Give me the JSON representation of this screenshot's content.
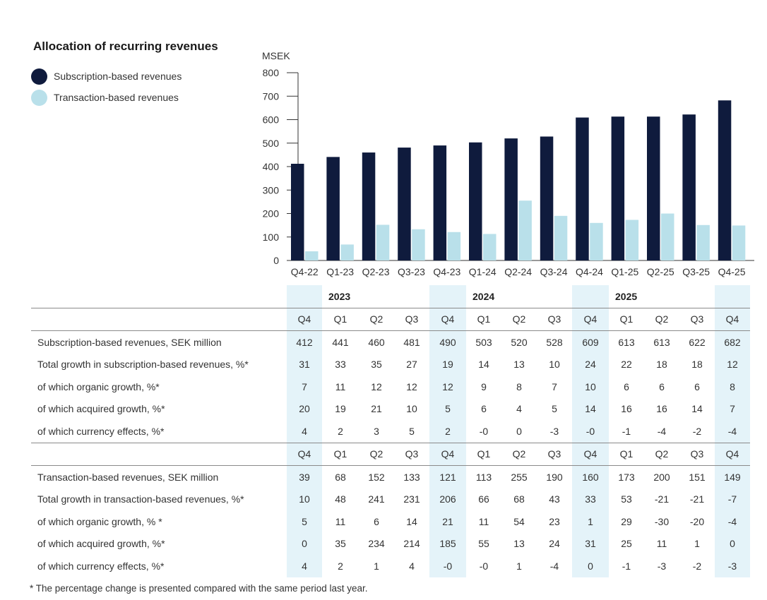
{
  "title": "Allocation of recurring revenues",
  "legend": [
    {
      "label": "Subscription-based revenues",
      "color": "#0f1b3d"
    },
    {
      "label": "Transaction-based revenues",
      "color": "#b9e0ea"
    }
  ],
  "chart_data": {
    "type": "bar",
    "unit": "MSEK",
    "categories": [
      "Q4-22",
      "Q1-23",
      "Q2-23",
      "Q3-23",
      "Q4-23",
      "Q1-24",
      "Q2-24",
      "Q3-24",
      "Q4-24",
      "Q1-25",
      "Q2-25",
      "Q3-25",
      "Q4-25"
    ],
    "series": [
      {
        "name": "Subscription-based revenues",
        "color": "#0f1b3d",
        "values": [
          412,
          441,
          460,
          481,
          490,
          503,
          520,
          528,
          609,
          613,
          613,
          622,
          682
        ]
      },
      {
        "name": "Transaction-based revenues",
        "color": "#b9e0ea",
        "values": [
          39,
          68,
          152,
          133,
          121,
          113,
          255,
          190,
          160,
          173,
          200,
          151,
          149
        ]
      }
    ],
    "y_ticks": [
      0,
      100,
      200,
      300,
      400,
      500,
      600,
      700,
      800
    ],
    "ylim": [
      0,
      800
    ]
  },
  "table": {
    "years": [
      "2023",
      "2024",
      "2025"
    ],
    "quarters": [
      "Q4",
      "Q1",
      "Q2",
      "Q3",
      "Q4",
      "Q1",
      "Q2",
      "Q3",
      "Q4",
      "Q1",
      "Q2",
      "Q3",
      "Q4"
    ],
    "highlight_cols": [
      0,
      4,
      8,
      12
    ],
    "section1": [
      {
        "label": "Subscription-based revenues, SEK million",
        "values": [
          "412",
          "441",
          "460",
          "481",
          "490",
          "503",
          "520",
          "528",
          "609",
          "613",
          "613",
          "622",
          "682"
        ]
      },
      {
        "label": "Total growth in subscription-based revenues, %*",
        "values": [
          "31",
          "33",
          "35",
          "27",
          "19",
          "14",
          "13",
          "10",
          "24",
          "22",
          "18",
          "18",
          "12"
        ]
      },
      {
        "label": "of which organic growth, %*",
        "values": [
          "7",
          "11",
          "12",
          "12",
          "12",
          "9",
          "8",
          "7",
          "10",
          "6",
          "6",
          "6",
          "8"
        ]
      },
      {
        "label": "of which acquired growth, %*",
        "values": [
          "20",
          "19",
          "21",
          "10",
          "5",
          "6",
          "4",
          "5",
          "14",
          "16",
          "16",
          "14",
          "7"
        ]
      },
      {
        "label": "of which currency effects, %*",
        "values": [
          "4",
          "2",
          "3",
          "5",
          "2",
          "-0",
          "0",
          "-3",
          "-0",
          "-1",
          "-4",
          "-2",
          "-4"
        ]
      }
    ],
    "section2": [
      {
        "label": "Transaction-based revenues, SEK million",
        "values": [
          "39",
          "68",
          "152",
          "133",
          "121",
          "113",
          "255",
          "190",
          "160",
          "173",
          "200",
          "151",
          "149"
        ]
      },
      {
        "label": "Total growth in transaction-based revenues, %*",
        "values": [
          "10",
          "48",
          "241",
          "231",
          "206",
          "66",
          "68",
          "43",
          "33",
          "53",
          "-21",
          "-21",
          "-7"
        ]
      },
      {
        "label": "of which organic growth, % *",
        "values": [
          "5",
          "11",
          "6",
          "14",
          "21",
          "11",
          "54",
          "23",
          "1",
          "29",
          "-30",
          "-20",
          "-4"
        ]
      },
      {
        "label": "of which acquired growth, %*",
        "values": [
          "0",
          "35",
          "234",
          "214",
          "185",
          "55",
          "13",
          "24",
          "31",
          "25",
          "11",
          "1",
          "0"
        ]
      },
      {
        "label": "of which currency effects, %*",
        "values": [
          "4",
          "2",
          "1",
          "4",
          "-0",
          "-0",
          "1",
          "-4",
          "0",
          "-1",
          "-3",
          "-2",
          "-3"
        ]
      }
    ]
  },
  "footnote": "* The percentage change is presented compared with the same period last year."
}
